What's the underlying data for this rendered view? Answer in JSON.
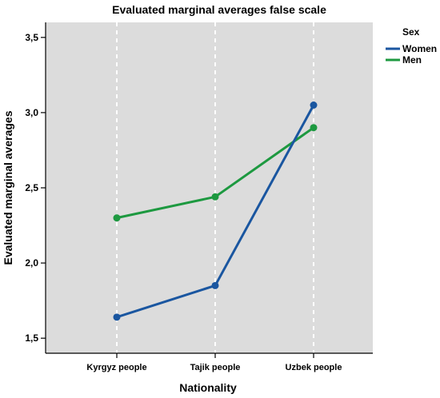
{
  "chart_data": {
    "type": "line",
    "title": "Evaluated marginal averages false scale",
    "xlabel": "Nationality",
    "ylabel": "Evaluated marginal averages",
    "categories": [
      "Kyrgyz people",
      "Tajik people",
      "Uzbek people"
    ],
    "ylim": [
      1.4,
      3.6
    ],
    "yticks": [
      1.5,
      2.0,
      2.5,
      3.0,
      3.5
    ],
    "ytick_labels": [
      "1,5",
      "2,0",
      "2,5",
      "3,0",
      "3,5"
    ],
    "grid": "vertical dashed white lines at categories",
    "plot_background": "#dcdcdc",
    "legend": {
      "title": "Sex",
      "placement": "right-top",
      "entries": [
        "Women",
        "Men"
      ]
    },
    "series": [
      {
        "name": "Women",
        "color": "#1a56a0",
        "values": [
          1.64,
          1.85,
          3.05
        ]
      },
      {
        "name": "Men",
        "color": "#1d9940",
        "values": [
          2.3,
          2.44,
          2.9
        ]
      }
    ]
  }
}
